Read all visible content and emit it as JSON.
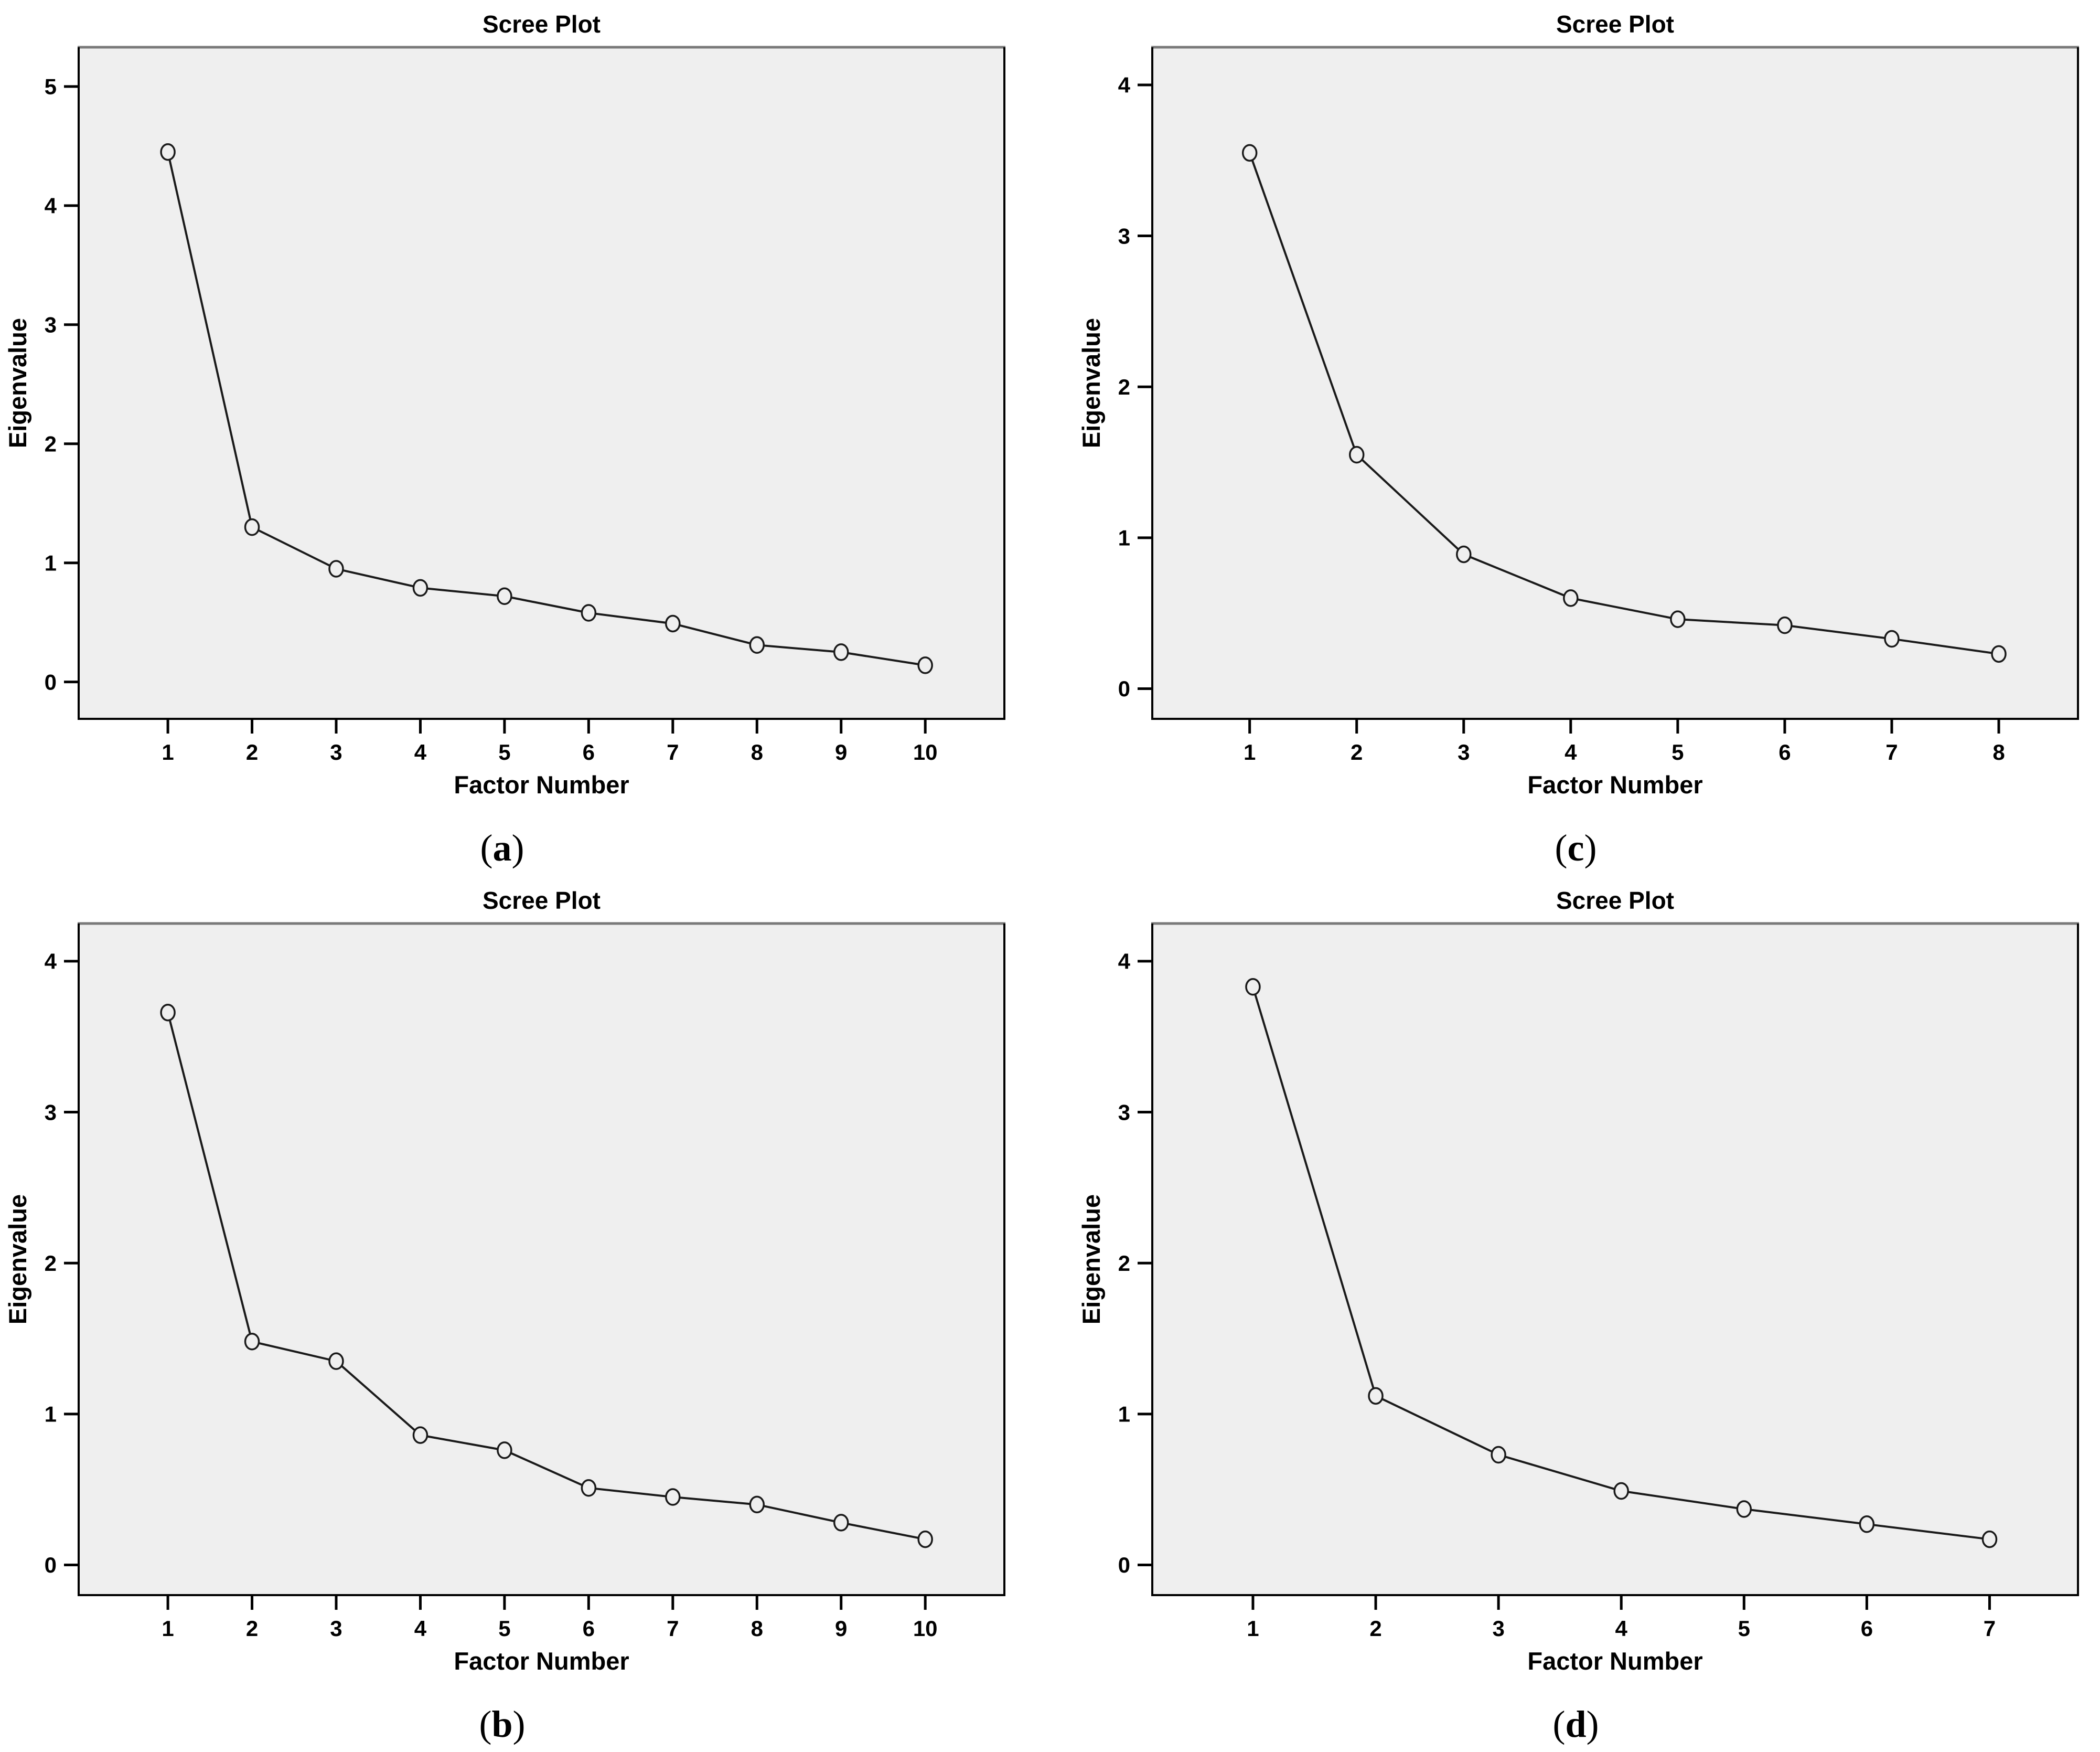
{
  "figure": {
    "background": "#ffffff",
    "colors": {
      "plot_bg": "#efefef",
      "frame_top": "#7a7a7a",
      "axis": "#000000",
      "line": "#1a1a1a",
      "marker_stroke": "#1a1a1a",
      "text": "#000000"
    },
    "panels": [
      {
        "letter": "a",
        "position": "top-left"
      },
      {
        "letter": "c",
        "position": "top-right"
      },
      {
        "letter": "b",
        "position": "bottom-left"
      },
      {
        "letter": "d",
        "position": "bottom-right"
      }
    ]
  },
  "chart_data": [
    {
      "panel": "a",
      "type": "line",
      "title": "Scree Plot",
      "xlabel": "Factor Number",
      "ylabel": "Eigenvalue",
      "caption": "(a)",
      "caption_letter": "a",
      "x": [
        1,
        2,
        3,
        4,
        5,
        6,
        7,
        8,
        9,
        10
      ],
      "values": [
        4.45,
        1.3,
        0.95,
        0.79,
        0.72,
        0.58,
        0.49,
        0.31,
        0.25,
        0.14
      ],
      "xticks": [
        1,
        2,
        3,
        4,
        5,
        6,
        7,
        8,
        9,
        10
      ],
      "yticks": [
        0,
        1,
        2,
        3,
        4,
        5
      ],
      "xlim": [
        -0.06,
        10.94
      ],
      "ylim": [
        -0.31,
        5.33
      ],
      "grid": false,
      "legend": null,
      "marker": "open-circle"
    },
    {
      "panel": "c",
      "type": "line",
      "title": "Scree Plot",
      "xlabel": "Factor Number",
      "ylabel": "Eigenvalue",
      "caption": "(c)",
      "caption_letter": "c",
      "x": [
        1,
        2,
        3,
        4,
        5,
        6,
        7,
        8
      ],
      "values": [
        3.55,
        1.55,
        0.89,
        0.6,
        0.46,
        0.42,
        0.33,
        0.23
      ],
      "xticks": [
        1,
        2,
        3,
        4,
        5,
        6,
        7,
        8
      ],
      "yticks": [
        0,
        1,
        2,
        3,
        4
      ],
      "xlim": [
        0.09,
        8.74
      ],
      "ylim": [
        -0.2,
        4.25
      ],
      "grid": false,
      "legend": null,
      "marker": "open-circle"
    },
    {
      "panel": "b",
      "type": "line",
      "title": "Scree Plot",
      "xlabel": "Factor Number",
      "ylabel": "Eigenvalue",
      "caption": "(b)",
      "caption_letter": "b",
      "x": [
        1,
        2,
        3,
        4,
        5,
        6,
        7,
        8,
        9,
        10
      ],
      "values": [
        3.66,
        1.48,
        1.35,
        0.86,
        0.76,
        0.51,
        0.45,
        0.4,
        0.28,
        0.17
      ],
      "xticks": [
        1,
        2,
        3,
        4,
        5,
        6,
        7,
        8,
        9,
        10
      ],
      "yticks": [
        0,
        1,
        2,
        3,
        4
      ],
      "xlim": [
        -0.06,
        10.94
      ],
      "ylim": [
        -0.2,
        4.25
      ],
      "grid": false,
      "legend": null,
      "marker": "open-circle"
    },
    {
      "panel": "d",
      "type": "line",
      "title": "Scree Plot",
      "xlabel": "Factor Number",
      "ylabel": "Eigenvalue",
      "caption": "(d)",
      "caption_letter": "d",
      "x": [
        1,
        2,
        3,
        4,
        5,
        6,
        7
      ],
      "values": [
        3.83,
        1.12,
        0.73,
        0.49,
        0.37,
        0.27,
        0.17
      ],
      "xticks": [
        1,
        2,
        3,
        4,
        5,
        6,
        7
      ],
      "yticks": [
        0,
        1,
        2,
        3,
        4
      ],
      "xlim": [
        0.18,
        7.72
      ],
      "ylim": [
        -0.2,
        4.25
      ],
      "grid": false,
      "legend": null,
      "marker": "open-circle"
    }
  ]
}
